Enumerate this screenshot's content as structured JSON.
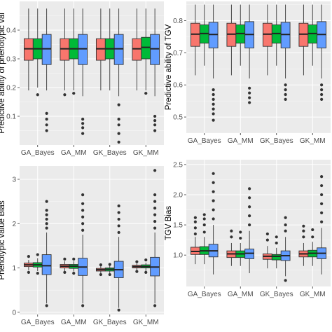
{
  "colors": {
    "series": [
      "#F8766D",
      "#00BA38",
      "#619CFF"
    ],
    "panel_background": "#ebebeb",
    "grid": "#ffffff"
  },
  "chart_data": [
    {
      "type": "boxplot",
      "ylabel": "Predictive ability of phenotypic val",
      "categories": [
        "GA_Bayes",
        "GA_MM",
        "GK_Bayes",
        "GK_MM"
      ],
      "ylim": [
        0.0,
        0.5
      ],
      "yticks": [
        0.1,
        0.2,
        0.3,
        0.4
      ],
      "grid": true,
      "groups": [
        {
          "category": "GA_Bayes",
          "boxes": [
            {
              "low": 0.19,
              "q1": 0.295,
              "median": 0.335,
              "q3": 0.37,
              "high": 0.475,
              "outliers": []
            },
            {
              "low": 0.2,
              "q1": 0.3,
              "median": 0.335,
              "q3": 0.37,
              "high": 0.475,
              "outliers": [
                0.175
              ]
            },
            {
              "low": 0.19,
              "q1": 0.28,
              "median": 0.335,
              "q3": 0.385,
              "high": 0.475,
              "outliers": [
                0.11,
                0.09,
                0.07,
                0.05
              ]
            }
          ]
        },
        {
          "category": "GA_MM",
          "boxes": [
            {
              "low": 0.19,
              "q1": 0.295,
              "median": 0.335,
              "q3": 0.37,
              "high": 0.475,
              "outliers": [
                0.175
              ]
            },
            {
              "low": 0.19,
              "q1": 0.3,
              "median": 0.335,
              "q3": 0.37,
              "high": 0.475,
              "outliers": [
                0.18
              ]
            },
            {
              "low": 0.17,
              "q1": 0.28,
              "median": 0.335,
              "q3": 0.385,
              "high": 0.475,
              "outliers": [
                0.09,
                0.075,
                0.06,
                0.04
              ]
            }
          ]
        },
        {
          "category": "GK_Bayes",
          "boxes": [
            {
              "low": 0.19,
              "q1": 0.295,
              "median": 0.335,
              "q3": 0.37,
              "high": 0.475,
              "outliers": []
            },
            {
              "low": 0.19,
              "q1": 0.3,
              "median": 0.335,
              "q3": 0.37,
              "high": 0.475,
              "outliers": []
            },
            {
              "low": 0.17,
              "q1": 0.28,
              "median": 0.335,
              "q3": 0.385,
              "high": 0.475,
              "outliers": [
                0.14,
                0.09,
                0.07,
                0.04,
                0.01
              ]
            }
          ]
        },
        {
          "category": "GK_MM",
          "boxes": [
            {
              "low": 0.19,
              "q1": 0.295,
              "median": 0.335,
              "q3": 0.37,
              "high": 0.475,
              "outliers": []
            },
            {
              "low": 0.19,
              "q1": 0.3,
              "median": 0.34,
              "q3": 0.375,
              "high": 0.475,
              "outliers": [
                0.18
              ]
            },
            {
              "low": 0.17,
              "q1": 0.28,
              "median": 0.335,
              "q3": 0.385,
              "high": 0.475,
              "outliers": [
                0.1,
                0.085,
                0.07,
                0.05
              ]
            }
          ]
        }
      ]
    },
    {
      "type": "boxplot",
      "ylabel": "Predictive ability of  TGV",
      "categories": [
        "GA_Bayes",
        "GA_MM",
        "GK_Bayes",
        "GK_MM"
      ],
      "ylim": [
        0.45,
        0.86
      ],
      "yticks": [
        0.5,
        0.6,
        0.7,
        0.8
      ],
      "grid": true,
      "groups": [
        {
          "category": "GA_Bayes",
          "boxes": [
            {
              "low": 0.63,
              "q1": 0.72,
              "median": 0.758,
              "q3": 0.792,
              "high": 0.85,
              "outliers": []
            },
            {
              "low": 0.66,
              "q1": 0.73,
              "median": 0.76,
              "q3": 0.787,
              "high": 0.85,
              "outliers": []
            },
            {
              "low": 0.62,
              "q1": 0.715,
              "median": 0.757,
              "q3": 0.795,
              "high": 0.85,
              "outliers": [
                0.585,
                0.57,
                0.555,
                0.54,
                0.525,
                0.51,
                0.49
              ]
            }
          ]
        },
        {
          "category": "GA_MM",
          "boxes": [
            {
              "low": 0.63,
              "q1": 0.72,
              "median": 0.758,
              "q3": 0.792,
              "high": 0.85,
              "outliers": []
            },
            {
              "low": 0.66,
              "q1": 0.73,
              "median": 0.76,
              "q3": 0.787,
              "high": 0.85,
              "outliers": []
            },
            {
              "low": 0.62,
              "q1": 0.715,
              "median": 0.757,
              "q3": 0.797,
              "high": 0.85,
              "outliers": [
                0.59,
                0.575,
                0.56,
                0.545
              ]
            }
          ]
        },
        {
          "category": "GK_Bayes",
          "boxes": [
            {
              "low": 0.63,
              "q1": 0.72,
              "median": 0.758,
              "q3": 0.792,
              "high": 0.85,
              "outliers": []
            },
            {
              "low": 0.66,
              "q1": 0.73,
              "median": 0.76,
              "q3": 0.787,
              "high": 0.85,
              "outliers": []
            },
            {
              "low": 0.62,
              "q1": 0.715,
              "median": 0.757,
              "q3": 0.795,
              "high": 0.85,
              "outliers": [
                0.6,
                0.585,
                0.57,
                0.555
              ]
            }
          ]
        },
        {
          "category": "GK_MM",
          "boxes": [
            {
              "low": 0.63,
              "q1": 0.72,
              "median": 0.758,
              "q3": 0.792,
              "high": 0.85,
              "outliers": []
            },
            {
              "low": 0.66,
              "q1": 0.73,
              "median": 0.76,
              "q3": 0.787,
              "high": 0.85,
              "outliers": []
            },
            {
              "low": 0.62,
              "q1": 0.715,
              "median": 0.757,
              "q3": 0.797,
              "high": 0.85,
              "outliers": [
                0.6,
                0.585,
                0.57,
                0.555
              ]
            }
          ]
        }
      ]
    },
    {
      "type": "boxplot",
      "ylabel": "Phenotypic value Bias",
      "categories": [
        "GA_Bayes",
        "GA_MM",
        "GK_Bayes",
        "GK_MM"
      ],
      "ylim": [
        -0.05,
        3.3
      ],
      "yticks": [
        0,
        1,
        2,
        3
      ],
      "grid": true,
      "groups": [
        {
          "category": "GA_Bayes",
          "boxes": [
            {
              "low": 0.95,
              "q1": 1.03,
              "median": 1.07,
              "q3": 1.11,
              "high": 1.18,
              "outliers": [
                0.9,
                1.26
              ]
            },
            {
              "low": 0.93,
              "q1": 1.02,
              "median": 1.07,
              "q3": 1.12,
              "high": 1.22,
              "outliers": [
                0.88,
                1.3
              ]
            },
            {
              "low": 0.2,
              "q1": 0.85,
              "median": 1.05,
              "q3": 1.3,
              "high": 1.8,
              "outliers": [
                0.15,
                1.9,
                2.0,
                2.1,
                2.2,
                2.3,
                2.5
              ]
            }
          ]
        },
        {
          "category": "GA_MM",
          "boxes": [
            {
              "low": 0.93,
              "q1": 1.0,
              "median": 1.04,
              "q3": 1.08,
              "high": 1.15,
              "outliers": [
                0.9,
                1.2
              ]
            },
            {
              "low": 0.92,
              "q1": 0.99,
              "median": 1.04,
              "q3": 1.08,
              "high": 1.15,
              "outliers": [
                0.88,
                1.2
              ]
            },
            {
              "low": 0.2,
              "q1": 0.83,
              "median": 1.02,
              "q3": 1.22,
              "high": 1.75,
              "outliers": [
                0.15,
                1.85,
                2.0,
                2.15,
                2.3,
                2.45,
                2.65
              ]
            }
          ]
        },
        {
          "category": "GK_Bayes",
          "boxes": [
            {
              "low": 0.88,
              "q1": 0.93,
              "median": 0.96,
              "q3": 0.99,
              "high": 1.04,
              "outliers": [
                0.85,
                1.07
              ]
            },
            {
              "low": 0.88,
              "q1": 0.93,
              "median": 0.97,
              "q3": 1.0,
              "high": 1.05,
              "outliers": [
                0.85,
                1.08
              ]
            },
            {
              "low": 0.1,
              "q1": 0.78,
              "median": 0.96,
              "q3": 1.15,
              "high": 1.7,
              "outliers": [
                0.05,
                1.8,
                1.95,
                2.1,
                2.25,
                2.4
              ]
            }
          ]
        },
        {
          "category": "GK_MM",
          "boxes": [
            {
              "low": 0.95,
              "q1": 1.0,
              "median": 1.03,
              "q3": 1.06,
              "high": 1.1,
              "outliers": [
                0.92,
                1.14
              ]
            },
            {
              "low": 0.93,
              "q1": 1.0,
              "median": 1.03,
              "q3": 1.07,
              "high": 1.12,
              "outliers": [
                0.9,
                1.18
              ]
            },
            {
              "low": 0.2,
              "q1": 0.82,
              "median": 1.02,
              "q3": 1.24,
              "high": 1.8,
              "outliers": [
                0.15,
                1.9,
                2.05,
                2.2,
                2.35,
                2.5,
                2.65,
                3.2
              ]
            }
          ]
        }
      ]
    },
    {
      "type": "boxplot",
      "ylabel": "TGV Bias",
      "categories": [
        "GA_Bayes",
        "GA_MM",
        "GK_Bayes",
        "GK_MM"
      ],
      "ylim": [
        0.48,
        2.58
      ],
      "yticks": [
        1.0,
        1.5,
        2.0,
        2.5
      ],
      "grid": true,
      "groups": [
        {
          "category": "GA_Bayes",
          "boxes": [
            {
              "low": 0.85,
              "q1": 1.01,
              "median": 1.06,
              "q3": 1.13,
              "high": 1.3,
              "outliers": [
                1.35,
                1.45,
                1.55,
                1.62
              ]
            },
            {
              "low": 0.85,
              "q1": 1.01,
              "median": 1.07,
              "q3": 1.14,
              "high": 1.3,
              "outliers": [
                1.38,
                1.5,
                1.6,
                1.67
              ]
            },
            {
              "low": 0.68,
              "q1": 0.97,
              "median": 1.07,
              "q3": 1.18,
              "high": 1.5,
              "outliers": [
                1.6,
                1.75,
                1.9,
                2.05,
                2.2,
                2.35
              ]
            }
          ]
        },
        {
          "category": "GA_MM",
          "boxes": [
            {
              "low": 0.82,
              "q1": 0.96,
              "median": 1.02,
              "q3": 1.07,
              "high": 1.2,
              "outliers": [
                1.3,
                1.4
              ]
            },
            {
              "low": 0.82,
              "q1": 0.96,
              "median": 1.02,
              "q3": 1.07,
              "high": 1.2,
              "outliers": [
                1.28,
                1.38
              ]
            },
            {
              "low": 0.7,
              "q1": 0.94,
              "median": 1.03,
              "q3": 1.1,
              "high": 1.4,
              "outliers": [
                1.5,
                1.65,
                1.8,
                1.95,
                2.1
              ]
            }
          ]
        },
        {
          "category": "GK_Bayes",
          "boxes": [
            {
              "low": 0.78,
              "q1": 0.93,
              "median": 0.98,
              "q3": 1.02,
              "high": 1.15,
              "outliers": [
                1.25,
                1.35
              ]
            },
            {
              "low": 0.78,
              "q1": 0.92,
              "median": 0.98,
              "q3": 1.01,
              "high": 1.12,
              "outliers": [
                1.2,
                1.3
              ]
            },
            {
              "low": 0.65,
              "q1": 0.91,
              "median": 0.99,
              "q3": 1.07,
              "high": 1.3,
              "outliers": [
                0.58,
                1.4,
                1.5,
                1.62
              ]
            }
          ]
        },
        {
          "category": "GK_MM",
          "boxes": [
            {
              "low": 0.82,
              "q1": 0.97,
              "median": 1.02,
              "q3": 1.07,
              "high": 1.2,
              "outliers": [
                1.3,
                1.4,
                1.48
              ]
            },
            {
              "low": 0.82,
              "q1": 0.97,
              "median": 1.03,
              "q3": 1.08,
              "high": 1.22,
              "outliers": [
                1.3,
                1.42
              ]
            },
            {
              "low": 0.68,
              "q1": 0.94,
              "median": 1.03,
              "q3": 1.12,
              "high": 1.45,
              "outliers": [
                1.55,
                1.7,
                1.85,
                2.0,
                2.15,
                2.3
              ]
            }
          ]
        }
      ]
    }
  ]
}
